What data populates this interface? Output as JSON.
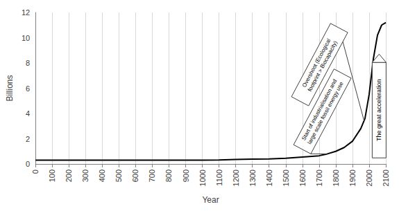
{
  "chart_data": {
    "type": "line",
    "x_label": "Year",
    "y_label": "Billions",
    "x": [
      0,
      100,
      200,
      300,
      400,
      500,
      600,
      700,
      800,
      900,
      1000,
      1100,
      1200,
      1300,
      1400,
      1500,
      1600,
      1700,
      1750,
      1800,
      1850,
      1900,
      1950,
      1975,
      2000,
      2025,
      2050,
      2075,
      2100
    ],
    "values": [
      0.3,
      0.3,
      0.3,
      0.3,
      0.3,
      0.3,
      0.3,
      0.3,
      0.3,
      0.3,
      0.3,
      0.32,
      0.36,
      0.38,
      0.4,
      0.45,
      0.55,
      0.65,
      0.8,
      1.0,
      1.3,
      1.8,
      2.8,
      3.6,
      5.5,
      8.3,
      10.2,
      11.0,
      11.2
    ],
    "color": "#000000",
    "xlim": [
      0,
      2100
    ],
    "xticks": [
      0,
      100,
      200,
      300,
      400,
      500,
      600,
      700,
      800,
      900,
      1000,
      1100,
      1200,
      1300,
      1400,
      1500,
      1600,
      1700,
      1800,
      1900,
      2000,
      2100
    ],
    "ylim": [
      0,
      12
    ],
    "yticks": [
      0,
      2,
      4,
      6,
      8,
      10,
      12
    ],
    "grid": true,
    "annotations": [
      {
        "text": "Start of industrialisation and\nlarge scale fossil energy use",
        "x": 1750,
        "y": 0.8
      },
      {
        "text": "Overshoot (Ecological\nfootprint > Biocapacity)",
        "x": 1970,
        "y": 3.4
      },
      {
        "text": "The great acceleration",
        "x": 2060,
        "y": 8.7
      }
    ]
  }
}
